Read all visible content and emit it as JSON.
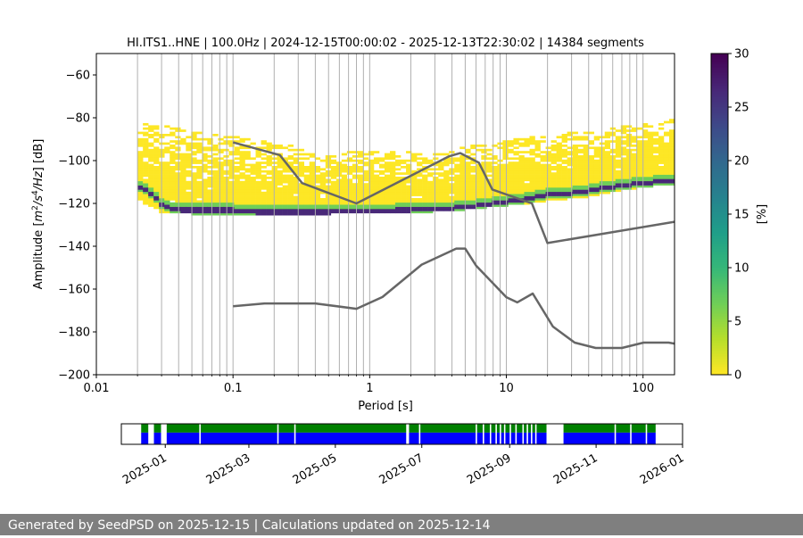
{
  "title": "HI.ITS1..HNE | 100.0Hz | 2024-12-15T00:00:02 - 2025-12-13T22:30:02 | 14384 segments",
  "footer": "Generated by SeedPSD on 2025-12-15 | Calculations updated on 2025-12-14",
  "colors": {
    "viridis": [
      "#fde725",
      "#b5de2b",
      "#6ece58",
      "#35b779",
      "#1f9e89",
      "#26828e",
      "#31688e",
      "#3e4989",
      "#482878",
      "#440154"
    ],
    "noise_model": "#666666",
    "grid": "#b0b0b0",
    "availability_top": "#008000",
    "availability_bottom": "#0000ff"
  },
  "chart_data": [
    {
      "type": "heatmap",
      "title": "HI.ITS1..HNE | 100.0Hz | 2024-12-15T00:00:02 - 2025-12-13T22:30:02 | 14384 segments",
      "xlabel": "Period [s]",
      "ylabel": "Amplitude [m²/s⁴/Hz] [dB]",
      "xscale": "log",
      "xlim": [
        0.01,
        170
      ],
      "ylim": [
        -200,
        -50
      ],
      "xticks": [
        {
          "value": 0.01,
          "label": "0.01"
        },
        {
          "value": 0.1,
          "label": "0.1"
        },
        {
          "value": 1,
          "label": "1"
        },
        {
          "value": 10,
          "label": "10"
        },
        {
          "value": 100,
          "label": "100"
        }
      ],
      "yticks": [
        {
          "value": -60,
          "label": "−60"
        },
        {
          "value": -80,
          "label": "−80"
        },
        {
          "value": -100,
          "label": "−100"
        },
        {
          "value": -120,
          "label": "−120"
        },
        {
          "value": -140,
          "label": "−140"
        },
        {
          "value": -160,
          "label": "−160"
        },
        {
          "value": -180,
          "label": "−180"
        },
        {
          "value": -200,
          "label": "−200"
        }
      ],
      "grid_x_periods": [
        0.02,
        0.03,
        0.04,
        0.05,
        0.06,
        0.07,
        0.08,
        0.09,
        0.1,
        0.2,
        0.3,
        0.4,
        0.5,
        0.6,
        0.7,
        0.8,
        0.9,
        1,
        2,
        3,
        4,
        5,
        6,
        7,
        8,
        9,
        10,
        20,
        30,
        40,
        50,
        60,
        70,
        80,
        90,
        100
      ],
      "grid_y": false,
      "colorbar": {
        "label": "[%]",
        "range": [
          0,
          30
        ],
        "ticks": [
          {
            "value": 0,
            "label": "0"
          },
          {
            "value": 5,
            "label": "5"
          },
          {
            "value": 10,
            "label": "10"
          },
          {
            "value": 15,
            "label": "15"
          },
          {
            "value": 20,
            "label": "20"
          },
          {
            "value": 25,
            "label": "25"
          },
          {
            "value": 30,
            "label": "30"
          }
        ]
      },
      "psd_mode": {
        "period": [
          0.02,
          0.021,
          0.025,
          0.03,
          0.035,
          0.04,
          0.05,
          0.07,
          0.1,
          0.15,
          0.2,
          0.3,
          0.5,
          0.8,
          1,
          1.5,
          2,
          3,
          4,
          5,
          6,
          8,
          10,
          13,
          16,
          20,
          30,
          50,
          80,
          120,
          170
        ],
        "db": [
          -112,
          -113,
          -115,
          -120,
          -122,
          -123,
          -123,
          -123,
          -123,
          -124,
          -124,
          -124,
          -124,
          -123.5,
          -123.5,
          -123,
          -123,
          -122.5,
          -122,
          -121.5,
          -121,
          -120,
          -119,
          -118,
          -117,
          -116,
          -115,
          -113,
          -111,
          -110,
          -109
        ]
      },
      "psd_envelope": {
        "period": [
          0.02,
          0.03,
          0.05,
          0.1,
          0.2,
          0.5,
          1,
          2,
          3,
          5,
          7,
          10,
          20,
          40,
          70,
          120,
          170
        ],
        "upper_db": [
          -81,
          -83,
          -86,
          -88,
          -92,
          -95,
          -96,
          -96,
          -96,
          -93,
          -92,
          -90,
          -88,
          -86,
          -84,
          -82,
          -80
        ],
        "lower_db": [
          -118,
          -124,
          -125,
          -125,
          -125,
          -125,
          -124.5,
          -124,
          -124,
          -123,
          -122,
          -121,
          -119,
          -117,
          -114,
          -112,
          -111
        ]
      },
      "noise_models": [
        {
          "period": [
            0.1,
            0.22,
            0.32,
            0.8,
            3.8,
            4.6,
            6.3,
            7.9,
            15.4,
            20,
            170
          ],
          "db": [
            -91.5,
            -97.4,
            -110.5,
            -120,
            -98,
            -96.5,
            -101,
            -113.5,
            -120,
            -138.5,
            -128.6
          ]
        },
        {
          "period": [
            0.1,
            0.17,
            0.4,
            0.8,
            1.24,
            2.4,
            4.3,
            5,
            6,
            10,
            12,
            15.6,
            21.9,
            31.6,
            45,
            70,
            101,
            154,
            170
          ],
          "db": [
            -168,
            -166.7,
            -166.7,
            -169.2,
            -163.7,
            -148.6,
            -141.1,
            -141.1,
            -149,
            -163.8,
            -166.2,
            -162.1,
            -177.5,
            -185,
            -187.5,
            -187.5,
            -185,
            -185,
            -185.5
          ]
        }
      ]
    },
    {
      "type": "area",
      "title": "",
      "xlabel": "",
      "ylabel": "",
      "xlim": [
        "2024-12-01",
        "2026-01-01"
      ],
      "xticks": [
        "2025-01",
        "2025-03",
        "2025-05",
        "2025-07",
        "2025-09",
        "2025-11",
        "2026-01"
      ],
      "gaps": [
        [
          "2024-12-01",
          "2024-12-15"
        ],
        [
          "2024-12-20",
          "2024-12-24"
        ],
        [
          "2024-12-29",
          "2025-01-02"
        ],
        [
          "2025-01-25",
          "2025-01-26"
        ],
        [
          "2025-03-21",
          "2025-03-22"
        ],
        [
          "2025-04-02",
          "2025-04-03"
        ],
        [
          "2025-06-20",
          "2025-06-22"
        ],
        [
          "2025-06-29",
          "2025-06-30"
        ],
        [
          "2025-08-08",
          "2025-08-09"
        ],
        [
          "2025-08-13",
          "2025-08-14"
        ],
        [
          "2025-08-18",
          "2025-08-19"
        ],
        [
          "2025-08-22",
          "2025-08-23"
        ],
        [
          "2025-08-25",
          "2025-08-26"
        ],
        [
          "2025-08-28",
          "2025-08-29"
        ],
        [
          "2025-09-01",
          "2025-09-02"
        ],
        [
          "2025-09-05",
          "2025-09-06"
        ],
        [
          "2025-09-10",
          "2025-09-11"
        ],
        [
          "2025-09-13",
          "2025-09-14"
        ],
        [
          "2025-09-16",
          "2025-09-17"
        ],
        [
          "2025-09-19",
          "2025-09-20"
        ],
        [
          "2025-09-27",
          "2025-10-09"
        ],
        [
          "2025-11-14",
          "2025-11-15"
        ],
        [
          "2025-11-25",
          "2025-11-26"
        ],
        [
          "2025-12-06",
          "2025-12-07"
        ],
        [
          "2025-12-13",
          "2026-01-01"
        ]
      ]
    }
  ]
}
